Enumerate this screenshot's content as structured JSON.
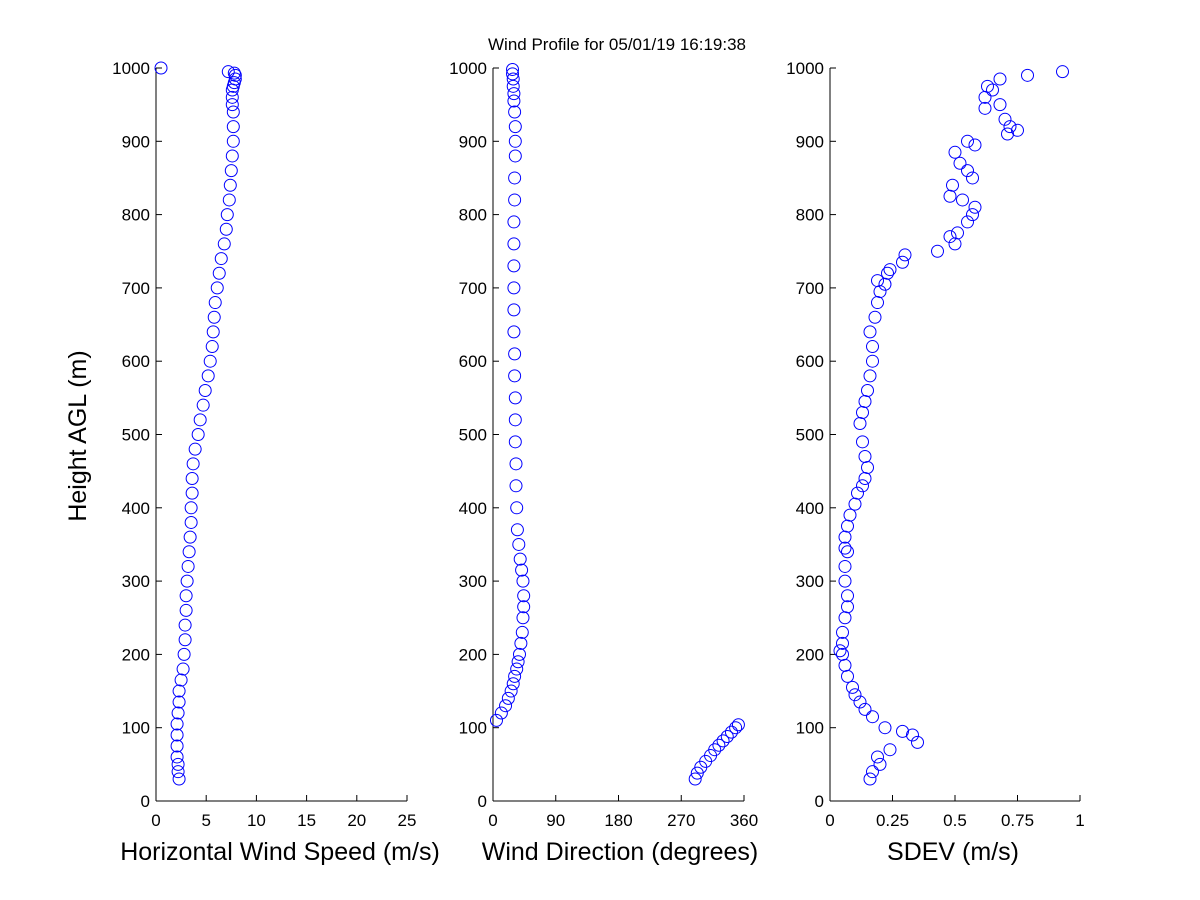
{
  "title": "Wind Profile for  05/01/19 16:19:38",
  "colors": {
    "marker": "#0000ff",
    "axis": "#000000"
  },
  "chart_data": [
    {
      "type": "scatter",
      "xlabel": "Horizontal Wind Speed (m/s)",
      "ylabel": "Height AGL (m)",
      "xlim": [
        0,
        25
      ],
      "ylim": [
        0,
        1000
      ],
      "xticks": [
        "0",
        "5",
        "10",
        "15",
        "20",
        "25"
      ],
      "yticks": [
        "0",
        "100",
        "200",
        "300",
        "400",
        "500",
        "600",
        "700",
        "800",
        "900",
        "1000"
      ],
      "grid": false,
      "x": [
        2.3,
        2.2,
        2.2,
        2.1,
        2.1,
        2.1,
        2.1,
        2.2,
        2.3,
        2.3,
        2.5,
        2.7,
        2.8,
        2.9,
        2.9,
        3.0,
        3.0,
        3.1,
        3.2,
        3.3,
        3.4,
        3.5,
        3.5,
        3.6,
        3.6,
        3.7,
        3.9,
        4.2,
        4.4,
        4.7,
        4.9,
        5.2,
        5.4,
        5.6,
        5.7,
        5.8,
        5.9,
        6.1,
        6.3,
        6.5,
        6.8,
        7.0,
        7.1,
        7.3,
        7.4,
        7.5,
        7.6,
        7.7,
        7.7,
        7.7,
        7.6,
        7.6,
        7.6,
        7.7,
        7.8,
        7.9,
        7.9,
        7.8,
        7.2,
        0.5
      ],
      "y": [
        30,
        40,
        50,
        60,
        75,
        90,
        105,
        120,
        135,
        150,
        165,
        180,
        200,
        220,
        240,
        260,
        280,
        300,
        320,
        340,
        360,
        380,
        400,
        420,
        440,
        460,
        480,
        500,
        520,
        540,
        560,
        580,
        600,
        620,
        640,
        660,
        680,
        700,
        720,
        740,
        760,
        780,
        800,
        820,
        840,
        860,
        880,
        900,
        920,
        940,
        950,
        960,
        970,
        975,
        980,
        985,
        990,
        993,
        995,
        1000
      ]
    },
    {
      "type": "scatter",
      "xlabel": "Wind Direction (degrees)",
      "xlim": [
        0,
        360
      ],
      "ylim": [
        0,
        1000
      ],
      "xticks": [
        "0",
        "90",
        "180",
        "270",
        "360"
      ],
      "yticks": [
        "0",
        "100",
        "200",
        "300",
        "400",
        "500",
        "600",
        "700",
        "800",
        "900",
        "1000"
      ],
      "grid": false,
      "x": [
        290,
        293,
        298,
        305,
        312,
        318,
        324,
        330,
        336,
        342,
        348,
        352,
        5,
        12,
        18,
        22,
        26,
        29,
        31,
        34,
        36,
        38,
        40,
        42,
        43,
        44,
        44,
        43,
        41,
        39,
        37,
        35,
        34,
        33,
        33,
        32,
        32,
        32,
        31,
        31,
        30,
        30,
        30,
        30,
        30,
        30,
        31,
        31,
        32,
        32,
        32,
        31,
        30,
        30,
        29,
        29,
        28,
        28
      ],
      "y": [
        30,
        38,
        46,
        54,
        62,
        70,
        76,
        82,
        88,
        94,
        100,
        104,
        110,
        120,
        130,
        140,
        150,
        160,
        170,
        180,
        190,
        200,
        215,
        230,
        250,
        265,
        280,
        300,
        315,
        330,
        350,
        370,
        400,
        430,
        460,
        490,
        520,
        550,
        580,
        610,
        640,
        670,
        700,
        730,
        760,
        790,
        820,
        850,
        880,
        900,
        920,
        940,
        955,
        965,
        975,
        985,
        992,
        998
      ]
    },
    {
      "type": "scatter",
      "xlabel": "SDEV  (m/s)",
      "xlim": [
        0,
        1
      ],
      "ylim": [
        0,
        1000
      ],
      "xticks": [
        "0",
        "0.25",
        "0.5",
        "0.75",
        "1"
      ],
      "yticks": [
        "0",
        "100",
        "200",
        "300",
        "400",
        "500",
        "600",
        "700",
        "800",
        "900",
        "1000"
      ],
      "grid": false,
      "x": [
        0.16,
        0.17,
        0.2,
        0.19,
        0.24,
        0.35,
        0.33,
        0.29,
        0.22,
        0.17,
        0.14,
        0.12,
        0.1,
        0.09,
        0.07,
        0.06,
        0.05,
        0.05,
        0.04,
        0.05,
        0.06,
        0.07,
        0.07,
        0.06,
        0.06,
        0.07,
        0.06,
        0.06,
        0.07,
        0.08,
        0.1,
        0.11,
        0.13,
        0.14,
        0.15,
        0.14,
        0.13,
        0.12,
        0.13,
        0.14,
        0.15,
        0.16,
        0.17,
        0.17,
        0.16,
        0.18,
        0.19,
        0.2,
        0.19,
        0.22,
        0.24,
        0.23,
        0.29,
        0.3,
        0.43,
        0.5,
        0.51,
        0.48,
        0.55,
        0.57,
        0.58,
        0.53,
        0.48,
        0.49,
        0.57,
        0.55,
        0.52,
        0.5,
        0.58,
        0.55,
        0.75,
        0.72,
        0.7,
        0.71,
        0.62,
        0.68,
        0.62,
        0.65,
        0.63,
        0.68,
        0.79,
        0.93
      ],
      "y": [
        30,
        40,
        50,
        60,
        70,
        80,
        90,
        95,
        100,
        115,
        125,
        135,
        145,
        155,
        170,
        185,
        200,
        215,
        205,
        230,
        250,
        265,
        280,
        300,
        320,
        340,
        345,
        360,
        375,
        390,
        405,
        420,
        430,
        440,
        455,
        470,
        490,
        515,
        530,
        545,
        560,
        580,
        600,
        620,
        640,
        660,
        680,
        695,
        710,
        705,
        725,
        720,
        735,
        745,
        750,
        760,
        775,
        770,
        790,
        800,
        810,
        820,
        825,
        840,
        850,
        860,
        870,
        885,
        895,
        900,
        915,
        920,
        930,
        910,
        945,
        950,
        960,
        970,
        975,
        985,
        990,
        995
      ]
    }
  ]
}
